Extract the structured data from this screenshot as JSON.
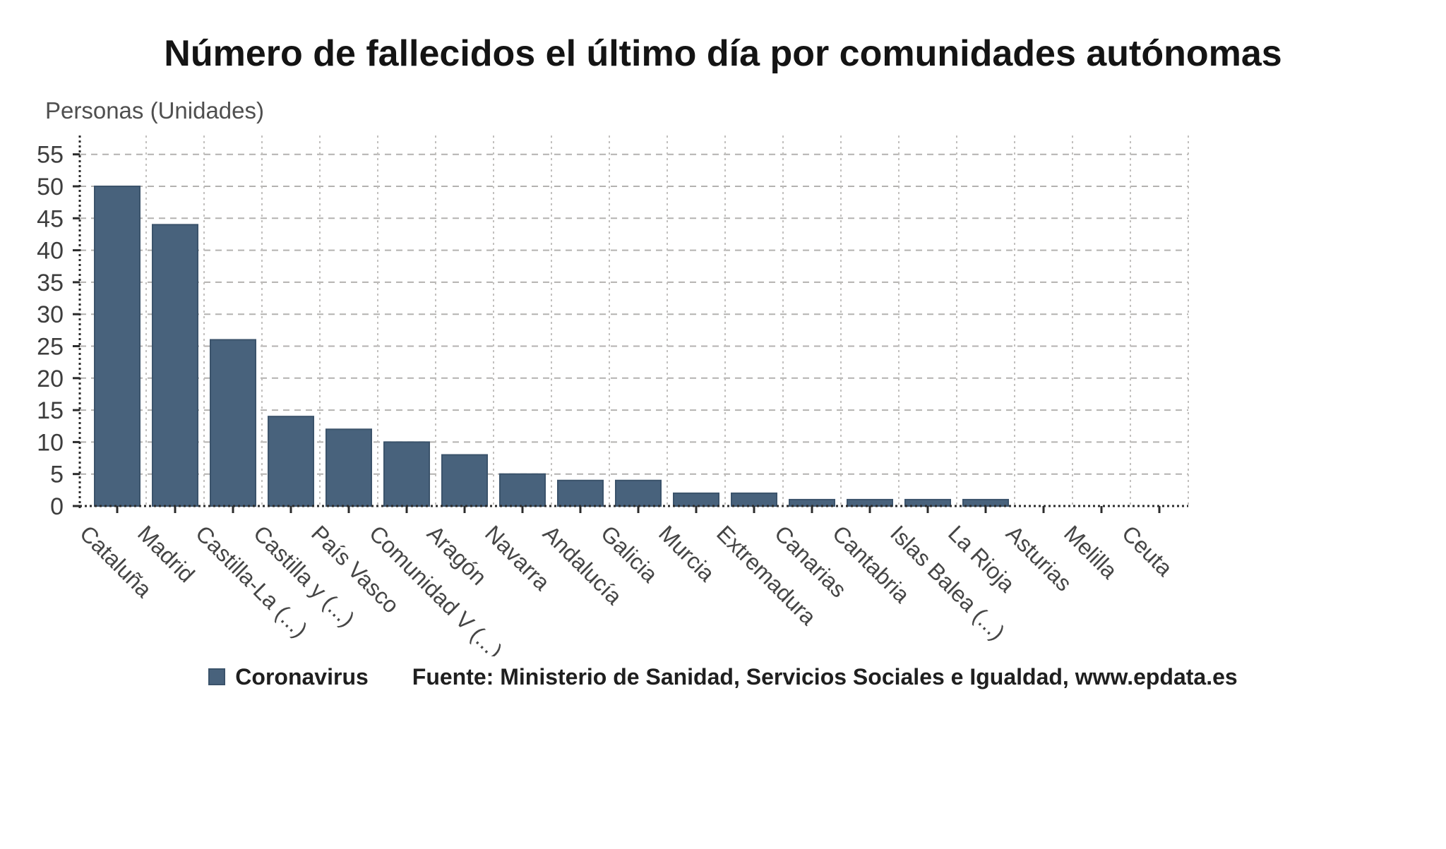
{
  "page": {
    "title": "Número de fallecidos el último día por comunidades autónomas",
    "y_axis_title": "Personas (Unidades)"
  },
  "legend": {
    "label": "Coronavirus"
  },
  "source": {
    "text": "Fuente: Ministerio de Sanidad, Servicios Sociales e Igualdad, www.epdata.es"
  },
  "colors": {
    "bar_fill": "#48627c",
    "bar_border": "#3b536b",
    "h_gridline": "#b4b2b0",
    "v_gridline": "#c2c0be",
    "axis_line": "#2b2b2b",
    "tick_label": "#3d3d3d"
  },
  "chart_data": {
    "type": "bar",
    "title": "Número de fallecidos el último día por comunidades autónomas",
    "xlabel": "",
    "ylabel": "Personas (Unidades)",
    "categories": [
      "Cataluña",
      "Madrid",
      "Castilla-La (...)",
      "Castilla y (...)",
      "País Vasco",
      "Comunidad V (...)",
      "Aragón",
      "Navarra",
      "Andalucía",
      "Galicia",
      "Murcia",
      "Extremadura",
      "Canarias",
      "Cantabria",
      "Islas Balea (...)",
      "La Rioja",
      "Asturias",
      "Melilla",
      "Ceuta"
    ],
    "series": [
      {
        "name": "Coronavirus",
        "values": [
          50,
          44,
          26,
          14,
          12,
          10,
          8,
          5,
          4,
          4,
          2,
          2,
          1,
          1,
          1,
          1,
          0,
          0,
          0
        ]
      }
    ],
    "yticks": [
      0,
      5,
      10,
      15,
      20,
      25,
      30,
      35,
      40,
      45,
      50,
      55
    ],
    "ylim": [
      0,
      58
    ],
    "grid": true,
    "grid_style": "dashed",
    "legend_position": "bottom",
    "source": "Fuente: Ministerio de Sanidad, Servicios Sociales e Igualdad, www.epdata.es"
  }
}
